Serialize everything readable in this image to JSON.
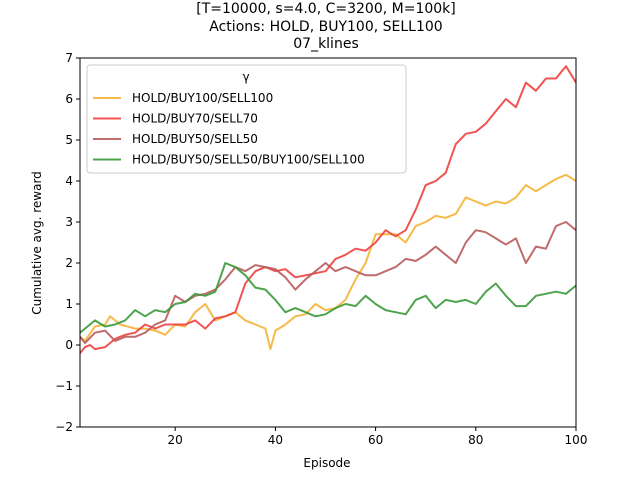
{
  "chart_data": {
    "type": "line",
    "title_lines": [
      "[T=10000, s=4.0, C=3200, M=100k]",
      "Actions: HOLD, BUY100, SELL100",
      "07_klines"
    ],
    "xlabel": "Episode",
    "ylabel": "Cumulative avg. reward",
    "xlim": [
      1,
      100
    ],
    "ylim": [
      -2,
      7
    ],
    "xticks": [
      20,
      40,
      60,
      80,
      100
    ],
    "yticks": [
      -2,
      -1,
      0,
      1,
      2,
      3,
      4,
      5,
      6,
      7
    ],
    "grid": false,
    "legend_title": "γ",
    "legend_position": "top-left",
    "series": [
      {
        "name": "HOLD/BUY100/SELL100",
        "color": "#f5b335",
        "keypoints": [
          [
            1,
            0.2
          ],
          [
            2,
            0.1
          ],
          [
            4,
            0.45
          ],
          [
            6,
            0.5
          ],
          [
            7,
            0.7
          ],
          [
            9,
            0.5
          ],
          [
            12,
            0.4
          ],
          [
            14,
            0.4
          ],
          [
            16,
            0.35
          ],
          [
            18,
            0.25
          ],
          [
            20,
            0.5
          ],
          [
            22,
            0.45
          ],
          [
            24,
            0.8
          ],
          [
            26,
            1.0
          ],
          [
            28,
            0.6
          ],
          [
            30,
            0.7
          ],
          [
            32,
            0.8
          ],
          [
            34,
            0.6
          ],
          [
            36,
            0.5
          ],
          [
            38,
            0.4
          ],
          [
            39,
            -0.1
          ],
          [
            40,
            0.35
          ],
          [
            42,
            0.5
          ],
          [
            44,
            0.7
          ],
          [
            46,
            0.75
          ],
          [
            48,
            1.0
          ],
          [
            50,
            0.85
          ],
          [
            52,
            0.9
          ],
          [
            54,
            1.1
          ],
          [
            56,
            1.6
          ],
          [
            58,
            2.0
          ],
          [
            60,
            2.7
          ],
          [
            62,
            2.7
          ],
          [
            64,
            2.7
          ],
          [
            66,
            2.5
          ],
          [
            68,
            2.9
          ],
          [
            70,
            3.0
          ],
          [
            72,
            3.15
          ],
          [
            74,
            3.1
          ],
          [
            76,
            3.2
          ],
          [
            78,
            3.6
          ],
          [
            80,
            3.5
          ],
          [
            82,
            3.4
          ],
          [
            84,
            3.5
          ],
          [
            86,
            3.45
          ],
          [
            88,
            3.6
          ],
          [
            90,
            3.9
          ],
          [
            92,
            3.75
          ],
          [
            94,
            3.9
          ],
          [
            96,
            4.05
          ],
          [
            98,
            4.15
          ],
          [
            100,
            4.0
          ]
        ]
      },
      {
        "name": "HOLD/BUY70/SELL70",
        "color": "#f04040",
        "keypoints": [
          [
            1,
            -0.2
          ],
          [
            2,
            -0.05
          ],
          [
            3,
            0.0
          ],
          [
            4,
            -0.1
          ],
          [
            6,
            -0.05
          ],
          [
            8,
            0.15
          ],
          [
            10,
            0.25
          ],
          [
            12,
            0.3
          ],
          [
            14,
            0.5
          ],
          [
            16,
            0.4
          ],
          [
            18,
            0.5
          ],
          [
            20,
            0.5
          ],
          [
            22,
            0.5
          ],
          [
            24,
            0.6
          ],
          [
            26,
            0.4
          ],
          [
            28,
            0.65
          ],
          [
            30,
            0.7
          ],
          [
            32,
            0.8
          ],
          [
            34,
            1.5
          ],
          [
            36,
            1.8
          ],
          [
            38,
            1.9
          ],
          [
            40,
            1.8
          ],
          [
            42,
            1.85
          ],
          [
            44,
            1.65
          ],
          [
            46,
            1.7
          ],
          [
            48,
            1.75
          ],
          [
            50,
            1.8
          ],
          [
            52,
            2.1
          ],
          [
            54,
            2.2
          ],
          [
            56,
            2.35
          ],
          [
            58,
            2.3
          ],
          [
            60,
            2.5
          ],
          [
            62,
            2.8
          ],
          [
            64,
            2.65
          ],
          [
            66,
            2.8
          ],
          [
            68,
            3.3
          ],
          [
            70,
            3.9
          ],
          [
            72,
            4.0
          ],
          [
            74,
            4.2
          ],
          [
            76,
            4.9
          ],
          [
            78,
            5.15
          ],
          [
            80,
            5.2
          ],
          [
            82,
            5.4
          ],
          [
            84,
            5.7
          ],
          [
            86,
            6.0
          ],
          [
            88,
            5.8
          ],
          [
            90,
            6.4
          ],
          [
            92,
            6.2
          ],
          [
            94,
            6.5
          ],
          [
            96,
            6.5
          ],
          [
            98,
            6.8
          ],
          [
            100,
            6.4
          ]
        ]
      },
      {
        "name": "HOLD/BUY50/SELL50",
        "color": "#b85c5c",
        "keypoints": [
          [
            1,
            0.2
          ],
          [
            2,
            0.05
          ],
          [
            4,
            0.3
          ],
          [
            6,
            0.35
          ],
          [
            8,
            0.1
          ],
          [
            10,
            0.2
          ],
          [
            12,
            0.2
          ],
          [
            14,
            0.3
          ],
          [
            16,
            0.5
          ],
          [
            18,
            0.6
          ],
          [
            20,
            1.2
          ],
          [
            22,
            1.05
          ],
          [
            24,
            1.2
          ],
          [
            26,
            1.25
          ],
          [
            28,
            1.35
          ],
          [
            30,
            1.6
          ],
          [
            32,
            1.9
          ],
          [
            34,
            1.8
          ],
          [
            36,
            1.95
          ],
          [
            38,
            1.9
          ],
          [
            40,
            1.85
          ],
          [
            42,
            1.65
          ],
          [
            44,
            1.35
          ],
          [
            46,
            1.6
          ],
          [
            48,
            1.8
          ],
          [
            50,
            2.0
          ],
          [
            52,
            1.8
          ],
          [
            54,
            1.9
          ],
          [
            56,
            1.8
          ],
          [
            58,
            1.7
          ],
          [
            60,
            1.7
          ],
          [
            62,
            1.8
          ],
          [
            64,
            1.9
          ],
          [
            66,
            2.1
          ],
          [
            68,
            2.05
          ],
          [
            70,
            2.2
          ],
          [
            72,
            2.4
          ],
          [
            74,
            2.2
          ],
          [
            76,
            2.0
          ],
          [
            78,
            2.5
          ],
          [
            80,
            2.8
          ],
          [
            82,
            2.75
          ],
          [
            84,
            2.6
          ],
          [
            86,
            2.45
          ],
          [
            88,
            2.6
          ],
          [
            90,
            2.0
          ],
          [
            92,
            2.4
          ],
          [
            94,
            2.35
          ],
          [
            96,
            2.9
          ],
          [
            98,
            3.0
          ],
          [
            100,
            2.8
          ]
        ]
      },
      {
        "name": "HOLD/BUY50/SELL50/BUY100/SELL100",
        "color": "#3a9a3a",
        "keypoints": [
          [
            1,
            0.3
          ],
          [
            2,
            0.4
          ],
          [
            4,
            0.6
          ],
          [
            6,
            0.45
          ],
          [
            8,
            0.5
          ],
          [
            10,
            0.6
          ],
          [
            12,
            0.85
          ],
          [
            14,
            0.7
          ],
          [
            16,
            0.85
          ],
          [
            18,
            0.8
          ],
          [
            20,
            1.0
          ],
          [
            22,
            1.05
          ],
          [
            24,
            1.25
          ],
          [
            26,
            1.2
          ],
          [
            28,
            1.3
          ],
          [
            30,
            2.0
          ],
          [
            32,
            1.9
          ],
          [
            34,
            1.7
          ],
          [
            36,
            1.4
          ],
          [
            38,
            1.35
          ],
          [
            40,
            1.1
          ],
          [
            42,
            0.8
          ],
          [
            44,
            0.9
          ],
          [
            46,
            0.8
          ],
          [
            48,
            0.7
          ],
          [
            50,
            0.75
          ],
          [
            52,
            0.9
          ],
          [
            54,
            1.0
          ],
          [
            56,
            0.95
          ],
          [
            58,
            1.2
          ],
          [
            60,
            1.0
          ],
          [
            62,
            0.85
          ],
          [
            64,
            0.8
          ],
          [
            66,
            0.75
          ],
          [
            68,
            1.1
          ],
          [
            70,
            1.2
          ],
          [
            72,
            0.9
          ],
          [
            74,
            1.1
          ],
          [
            76,
            1.05
          ],
          [
            78,
            1.1
          ],
          [
            80,
            1.0
          ],
          [
            82,
            1.3
          ],
          [
            84,
            1.5
          ],
          [
            86,
            1.2
          ],
          [
            88,
            0.95
          ],
          [
            90,
            0.95
          ],
          [
            92,
            1.2
          ],
          [
            94,
            1.25
          ],
          [
            96,
            1.3
          ],
          [
            98,
            1.25
          ],
          [
            100,
            1.45
          ]
        ]
      }
    ]
  }
}
